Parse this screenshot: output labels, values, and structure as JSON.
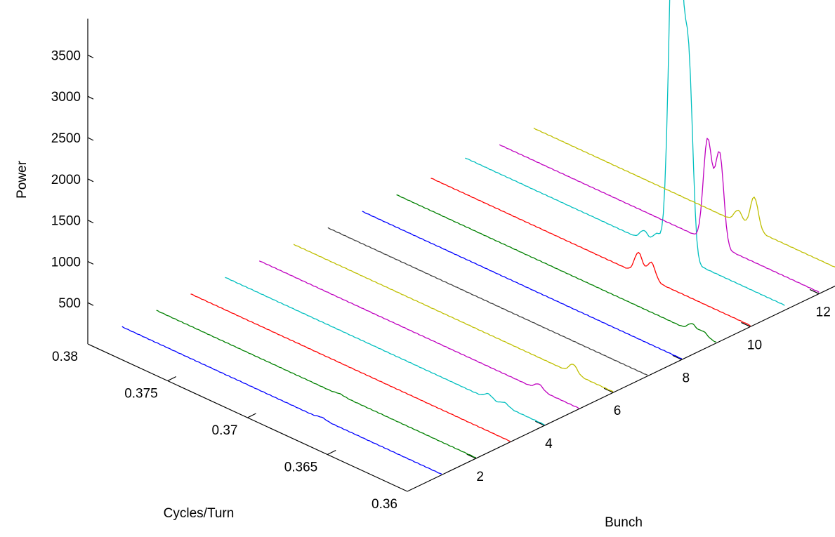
{
  "chart_data": {
    "type": "line",
    "projection": "3d-waterfall",
    "title": "",
    "xlabel": "Bunch",
    "ylabel": "Cycles/Turn",
    "zlabel": "Power",
    "xlim": [
      0,
      13
    ],
    "ylim": [
      0.36,
      0.38
    ],
    "zlim": [
      0,
      4000
    ],
    "xticks": [
      2,
      4,
      6,
      8,
      10,
      12
    ],
    "yticks": [
      0.36,
      0.365,
      0.37,
      0.375,
      0.38
    ],
    "zticks": [
      500,
      1000,
      1500,
      2000,
      2500,
      3000,
      3500
    ],
    "grid": false,
    "background": "#ffffff",
    "colors": [
      "#0000ff",
      "#008000",
      "#ff0000",
      "#00bfbf",
      "#bf00bf",
      "#bfbf00",
      "#404040"
    ],
    "series": [
      {
        "bunch": 1,
        "color": "#0000ff",
        "baseline": 8,
        "peaks": [
          {
            "f": 0.3675,
            "p": 20
          }
        ]
      },
      {
        "bunch": 2,
        "color": "#008000",
        "baseline": 8,
        "peaks": [
          {
            "f": 0.3685,
            "p": 15
          }
        ]
      },
      {
        "bunch": 3,
        "color": "#ff0000",
        "baseline": 8,
        "peaks": []
      },
      {
        "bunch": 4,
        "color": "#00bfbf",
        "baseline": 10,
        "peaks": [
          {
            "f": 0.3635,
            "p": 60
          },
          {
            "f": 0.3625,
            "p": 45
          }
        ]
      },
      {
        "bunch": 5,
        "color": "#bf00bf",
        "baseline": 10,
        "peaks": [
          {
            "f": 0.3625,
            "p": 70
          }
        ]
      },
      {
        "bunch": 6,
        "color": "#bfbf00",
        "baseline": 10,
        "peaks": [
          {
            "f": 0.3625,
            "p": 110
          }
        ]
      },
      {
        "bunch": 7,
        "color": "#404040",
        "baseline": 10,
        "peaks": []
      },
      {
        "bunch": 8,
        "color": "#0000ff",
        "baseline": 10,
        "peaks": []
      },
      {
        "bunch": 9,
        "color": "#008000",
        "baseline": 12,
        "peaks": [
          {
            "f": 0.3615,
            "p": 90
          },
          {
            "f": 0.3608,
            "p": 60
          }
        ]
      },
      {
        "bunch": 10,
        "color": "#ff0000",
        "baseline": 15,
        "peaks": [
          {
            "f": 0.3662,
            "p": 210
          },
          {
            "f": 0.367,
            "p": 260
          }
        ]
      },
      {
        "bunch": 11,
        "color": "#00bfbf",
        "baseline": 60,
        "peaks": [
          {
            "f": 0.3665,
            "p": 2400
          },
          {
            "f": 0.366,
            "p": 2300
          },
          {
            "f": 0.3669,
            "p": 3900
          },
          {
            "f": 0.3672,
            "p": 1100
          },
          {
            "f": 0.368,
            "p": 150
          },
          {
            "f": 0.3688,
            "p": 120
          }
        ]
      },
      {
        "bunch": 12,
        "color": "#bf00bf",
        "baseline": 20,
        "peaks": [
          {
            "f": 0.3662,
            "p": 1050
          },
          {
            "f": 0.367,
            "p": 1150
          },
          {
            "f": 0.3666,
            "p": 300
          }
        ]
      },
      {
        "bunch": 13,
        "color": "#bfbf00",
        "baseline": 20,
        "peaks": [
          {
            "f": 0.3662,
            "p": 400
          },
          {
            "f": 0.3672,
            "p": 150
          }
        ]
      }
    ]
  }
}
